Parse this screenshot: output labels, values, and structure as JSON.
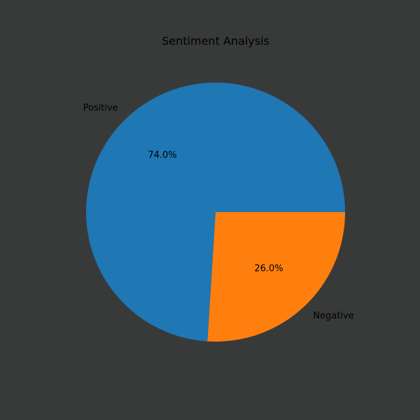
{
  "chart_data": {
    "type": "pie",
    "title": "Sentiment Analysis",
    "slices": [
      {
        "label": "Positive",
        "value": 74.0,
        "pct_label": "74.0%",
        "color": "#1f77b4"
      },
      {
        "label": "Negative",
        "value": 26.0,
        "pct_label": "26.0%",
        "color": "#ff7f0e"
      }
    ],
    "start_angle": 0,
    "direction": "counterclockwise",
    "legend": "none"
  },
  "figure": {
    "background": "#383a39"
  }
}
